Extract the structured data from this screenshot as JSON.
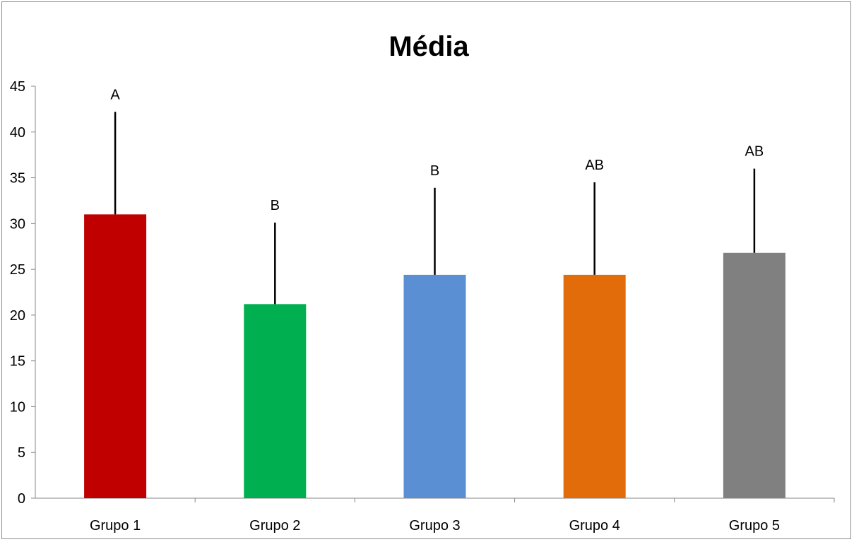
{
  "chart_data": {
    "type": "bar",
    "title": "Média",
    "xlabel": "",
    "ylabel": "",
    "ylim": [
      0,
      45
    ],
    "yticks": [
      "0",
      "5",
      "10",
      "15",
      "20",
      "25",
      "30",
      "35",
      "40",
      "45"
    ],
    "categories": [
      "Grupo 1",
      "Grupo 2",
      "Grupo 3",
      "Grupo 4",
      "Grupo 5"
    ],
    "values": [
      31,
      21.2,
      24.4,
      24.4,
      26.8
    ],
    "error_upper": [
      11.2,
      8.9,
      9.5,
      10.1,
      9.2
    ],
    "significance_labels": [
      "A",
      "B",
      "B",
      "AB",
      "AB"
    ],
    "colors": [
      "#c00000",
      "#00b050",
      "#5b8fd4",
      "#e36c0a",
      "#808080"
    ],
    "grid": false,
    "legend": "none"
  }
}
